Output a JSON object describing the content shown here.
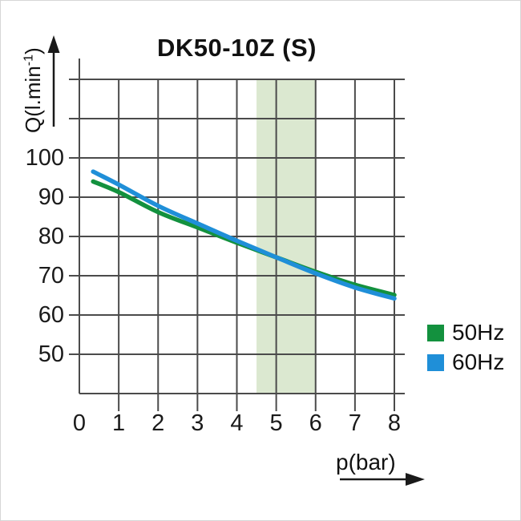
{
  "title": "DK50-10Z (S)",
  "y_axis_label": {
    "prefix": "Q(l.min",
    "sup": "-1",
    "suffix": ")"
  },
  "x_axis_label": "p(bar)",
  "legend": [
    {
      "label": "50Hz",
      "color": "#13913e"
    },
    {
      "label": "60Hz",
      "color": "#1f8fd8"
    }
  ],
  "colors": {
    "gridline": "#4b4b4b",
    "band": "#dbe8d0",
    "series_50hz": "#13913e",
    "series_60hz": "#1f8fd8"
  },
  "chart_data": {
    "type": "line",
    "title": "DK50-10Z (S)",
    "xlabel": "p(bar)",
    "ylabel": "Q(l.min-1)",
    "xlim": [
      0,
      8
    ],
    "ylim": [
      40,
      120
    ],
    "x_ticks": [
      0,
      1,
      2,
      3,
      4,
      5,
      6,
      7,
      8
    ],
    "y_ticks_labeled": [
      100,
      90,
      80,
      70,
      60,
      50
    ],
    "grid": true,
    "legend_position": "right-bottom",
    "highlight_band": {
      "x_from": 4.5,
      "x_to": 6.0,
      "color": "#dbe8d0"
    },
    "series": [
      {
        "name": "50Hz",
        "color": "#13913e",
        "points": [
          [
            0.35,
            94.0
          ],
          [
            1,
            91.3
          ],
          [
            2,
            86.2
          ],
          [
            3,
            82.3
          ],
          [
            4,
            78.4
          ],
          [
            5,
            74.7
          ],
          [
            6,
            71.0
          ],
          [
            7,
            67.7
          ],
          [
            8,
            65.1
          ]
        ]
      },
      {
        "name": "60Hz",
        "color": "#1f8fd8",
        "points": [
          [
            0.35,
            96.5
          ],
          [
            1,
            93.2
          ],
          [
            2,
            87.8
          ],
          [
            3,
            83.3
          ],
          [
            4,
            78.9
          ],
          [
            5,
            74.7
          ],
          [
            6,
            70.6
          ],
          [
            7,
            67.0
          ],
          [
            8,
            64.2
          ]
        ]
      }
    ]
  }
}
